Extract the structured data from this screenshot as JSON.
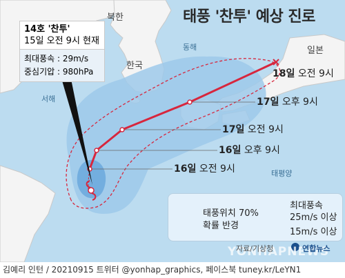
{
  "title": "태풍 '찬투' 예상 진로",
  "places": {
    "north_korea": "북한",
    "south_korea": "한국",
    "japan": "일본",
    "east_sea": "동해",
    "west_sea": "서해",
    "pacific": "태평양"
  },
  "infobox": {
    "name": "14호 '찬투'",
    "time": "15일 오전 9시 현재",
    "wind_label": "최대풍속 : 29m/s",
    "pressure_label": "중심기압 : 980hPa"
  },
  "track": [
    {
      "label_day": "16일",
      "label_time": "오전 9시"
    },
    {
      "label_day": "16일",
      "label_time": "오후 9시"
    },
    {
      "label_day": "17일",
      "label_time": "오전 9시"
    },
    {
      "label_day": "17일",
      "label_time": "오후 9시"
    },
    {
      "label_day": "18일",
      "label_time": "오전 9시"
    }
  ],
  "legend": {
    "prob_line1": "태풍위치 70%",
    "prob_line2": "확률 반경",
    "wind_title": "최대풍속",
    "wind_strong": "25m/s 이상",
    "wind_weak": "15m/s 이상"
  },
  "colors": {
    "sea": "#bcdcf0",
    "land": "#f4f4f4",
    "track": "#d7263d",
    "wind_weak": "#9ec9ea",
    "wind_strong": "#6ba8dd"
  },
  "credit": {
    "source": "자료/기상청",
    "agency": "연합뉴스",
    "footer": "김예리 인턴 / 20210915 트위터 @yonhap_graphics, 페이스북 tuney.kr/LeYN1",
    "watermark": "YONHAPNEWS"
  }
}
